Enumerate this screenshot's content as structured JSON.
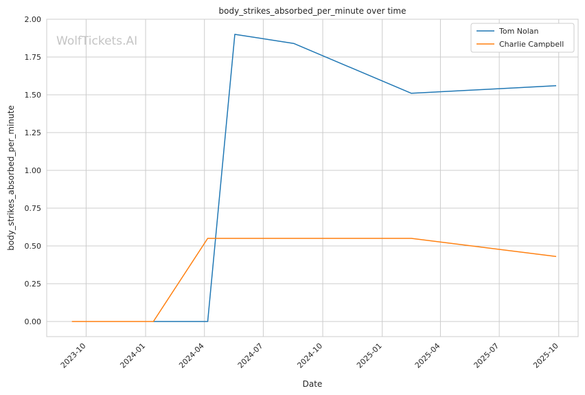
{
  "chart_data": {
    "type": "line",
    "title": "body_strikes_absorbed_per_minute over time",
    "xlabel": "Date",
    "ylabel": "body_strikes_absorbed_per_minute",
    "watermark": "WolfTickets.AI",
    "grid": true,
    "legend_position": "top-right",
    "xlim": [
      "2023-08-01",
      "2025-10-31"
    ],
    "ylim": [
      -0.1,
      2.0
    ],
    "x_ticks": [
      "2023-10-01",
      "2024-01-01",
      "2024-04-01",
      "2024-07-01",
      "2024-10-01",
      "2025-01-01",
      "2025-04-01",
      "2025-07-01",
      "2025-10-01"
    ],
    "x_tick_labels": [
      "2023-10",
      "2024-01",
      "2024-04",
      "2024-07",
      "2024-10",
      "2025-01",
      "2025-04",
      "2025-07",
      "2025-10"
    ],
    "y_ticks": [
      0.0,
      0.25,
      0.5,
      0.75,
      1.0,
      1.25,
      1.5,
      1.75,
      2.0
    ],
    "y_tick_labels": [
      "0.00",
      "0.25",
      "0.50",
      "0.75",
      "1.00",
      "1.25",
      "1.50",
      "1.75",
      "2.00"
    ],
    "series": [
      {
        "name": "Tom Nolan",
        "color": "#1f77b4",
        "x": [
          "2024-01-13",
          "2024-04-06",
          "2024-05-18",
          "2024-08-17",
          "2025-02-15",
          "2025-09-27"
        ],
        "y": [
          0.0,
          0.0,
          1.9,
          1.84,
          1.51,
          1.56
        ]
      },
      {
        "name": "Charlie Campbell",
        "color": "#ff7f0e",
        "x": [
          "2023-09-09",
          "2024-01-13",
          "2024-04-06",
          "2025-02-15",
          "2025-09-27"
        ],
        "y": [
          0.0,
          0.0,
          0.55,
          0.55,
          0.43
        ]
      }
    ]
  }
}
